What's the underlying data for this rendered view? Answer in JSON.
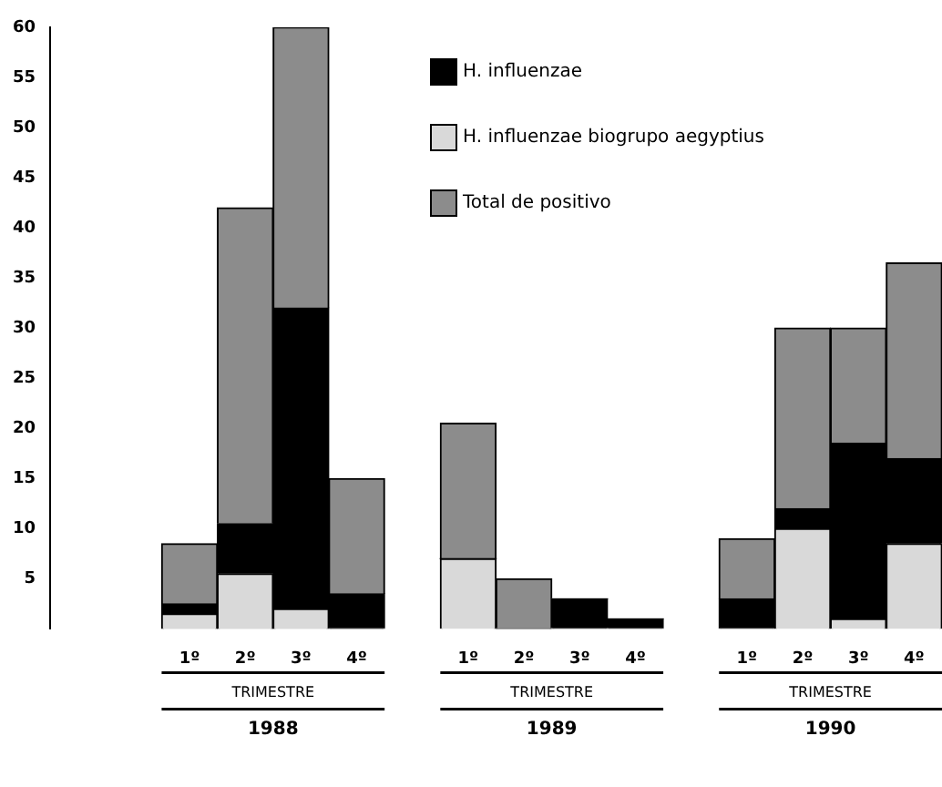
{
  "chart_data": {
    "type": "bar",
    "stacked": true,
    "categories": [
      null,
      null,
      "1º",
      "2º",
      "3º",
      "4º",
      null,
      "1º",
      "2º",
      "3º",
      "4º",
      null,
      "1º",
      "2º",
      "3º",
      "4º"
    ],
    "series": [
      {
        "name": "H. influenzae biogrupo aegyptius",
        "color": "#d9d9d9",
        "values": [
          null,
          null,
          1.5,
          5.5,
          2,
          0,
          null,
          7,
          0,
          0,
          0,
          null,
          0,
          10,
          1,
          8.5
        ]
      },
      {
        "name": "H. influenzae",
        "color": "#000000",
        "values": [
          null,
          null,
          1,
          5,
          30,
          3.5,
          null,
          0,
          0,
          3,
          1,
          null,
          3,
          2,
          17.5,
          8.5
        ]
      },
      {
        "name": "Total de positivo",
        "color": "#8c8c8c",
        "values": [
          null,
          null,
          6,
          31.5,
          28,
          11.5,
          null,
          13.5,
          5,
          0,
          0,
          null,
          6,
          18,
          11.5,
          19.5
        ]
      }
    ],
    "ylim": [
      0,
      60
    ],
    "yticks": [
      5,
      10,
      15,
      20,
      25,
      30,
      35,
      40,
      45,
      50,
      55,
      60
    ],
    "legend": "top right",
    "grid": false,
    "annotations": [
      "TRIMESTRE",
      "1988",
      "TRIMESTRE",
      "1989",
      "TRIMESTRE",
      "1990"
    ]
  }
}
